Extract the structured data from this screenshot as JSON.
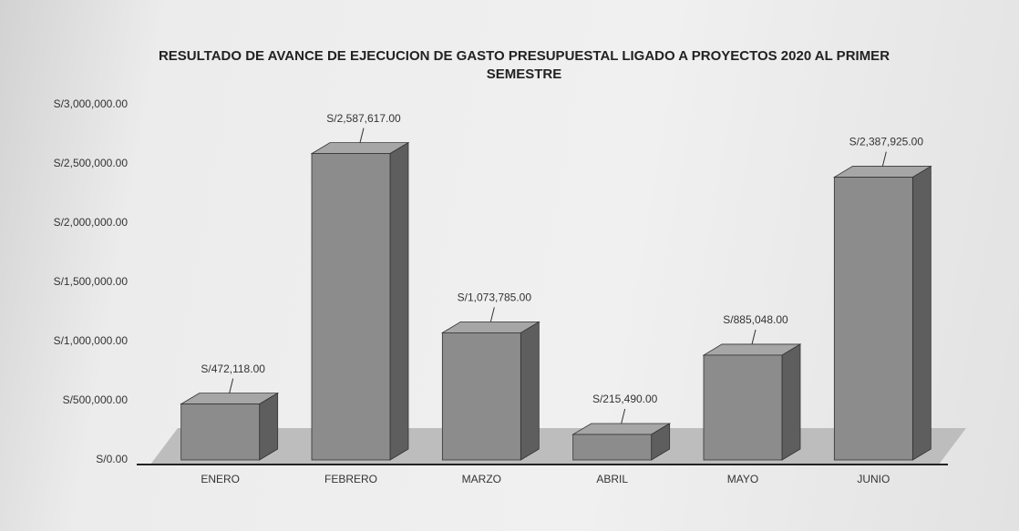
{
  "chart_data": {
    "type": "bar",
    "title": "RESULTADO DE AVANCE DE EJECUCION DE GASTO PRESUPUESTAL LIGADO A PROYECTOS 2020 AL PRIMER SEMESTRE",
    "categories": [
      "ENERO",
      "FEBRERO",
      "MARZO",
      "ABRIL",
      "MAYO",
      "JUNIO"
    ],
    "values": [
      472118,
      2587617,
      1073785,
      215490,
      885048,
      2387925
    ],
    "value_labels": [
      "S/472,118.00",
      "S/2,587,617.00",
      "S/1,073,785.00",
      "S/215,490.00",
      "S/885,048.00",
      "S/2,387,925.00"
    ],
    "color": "#8c8c8c",
    "ylim": [
      0,
      3000000
    ],
    "yticks": [
      {
        "value": 0,
        "label": "S/0.00"
      },
      {
        "value": 500000,
        "label": "S/500,000.00"
      },
      {
        "value": 1000000,
        "label": "S/1,000,000.00"
      },
      {
        "value": 1500000,
        "label": "S/1,500,000.00"
      },
      {
        "value": 2000000,
        "label": "S/2,000,000.00"
      },
      {
        "value": 2500000,
        "label": "S/2,500,000.00"
      },
      {
        "value": 3000000,
        "label": "S/3,000,000.00"
      }
    ],
    "grid": false
  }
}
